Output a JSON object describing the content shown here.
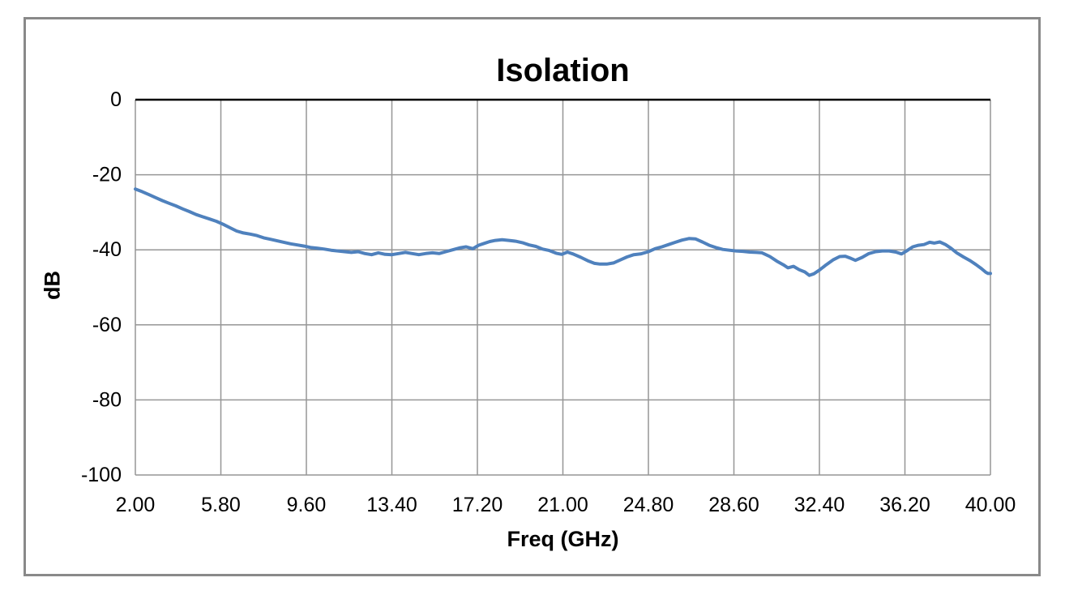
{
  "chart_data": {
    "type": "line",
    "title": "Isolation",
    "xlabel": "Freq (GHz)",
    "ylabel": "dB",
    "x_ticks": [
      "2.00",
      "5.80",
      "9.60",
      "13.40",
      "17.20",
      "21.00",
      "24.80",
      "28.60",
      "32.40",
      "36.20",
      "40.00"
    ],
    "x_tick_values": [
      2.0,
      5.8,
      9.6,
      13.4,
      17.2,
      21.0,
      24.8,
      28.6,
      32.4,
      36.2,
      40.0
    ],
    "y_ticks": [
      "0",
      "-20",
      "-40",
      "-60",
      "-80",
      "-100"
    ],
    "y_tick_values": [
      0,
      -20,
      -40,
      -60,
      -80,
      -100
    ],
    "xlim": [
      2.0,
      40.0
    ],
    "ylim": [
      -100,
      0
    ],
    "grid": true,
    "legend": "none",
    "colors": {
      "line": "#4F81BD",
      "grid": "#969696",
      "axis": "#000000",
      "border": "#898989"
    },
    "series": [
      {
        "name": "Isolation",
        "points": [
          [
            2.0,
            -23.8
          ],
          [
            2.3,
            -24.5
          ],
          [
            2.6,
            -25.3
          ],
          [
            2.9,
            -26.1
          ],
          [
            3.2,
            -26.9
          ],
          [
            3.5,
            -27.6
          ],
          [
            3.8,
            -28.3
          ],
          [
            4.1,
            -29.1
          ],
          [
            4.4,
            -29.8
          ],
          [
            4.7,
            -30.6
          ],
          [
            5.0,
            -31.2
          ],
          [
            5.3,
            -31.8
          ],
          [
            5.6,
            -32.4
          ],
          [
            5.9,
            -33.2
          ],
          [
            6.2,
            -34.1
          ],
          [
            6.5,
            -35.0
          ],
          [
            6.8,
            -35.5
          ],
          [
            7.1,
            -35.8
          ],
          [
            7.4,
            -36.2
          ],
          [
            7.7,
            -36.8
          ],
          [
            8.0,
            -37.2
          ],
          [
            8.3,
            -37.6
          ],
          [
            8.6,
            -38.0
          ],
          [
            8.9,
            -38.4
          ],
          [
            9.2,
            -38.7
          ],
          [
            9.5,
            -39.0
          ],
          [
            9.8,
            -39.4
          ],
          [
            10.1,
            -39.6
          ],
          [
            10.4,
            -39.8
          ],
          [
            10.7,
            -40.1
          ],
          [
            11.0,
            -40.3
          ],
          [
            11.3,
            -40.5
          ],
          [
            11.6,
            -40.7
          ],
          [
            11.9,
            -40.5
          ],
          [
            12.2,
            -41.0
          ],
          [
            12.5,
            -41.3
          ],
          [
            12.8,
            -40.8
          ],
          [
            13.1,
            -41.2
          ],
          [
            13.4,
            -41.3
          ],
          [
            13.7,
            -41.0
          ],
          [
            14.0,
            -40.7
          ],
          [
            14.3,
            -41.0
          ],
          [
            14.6,
            -41.3
          ],
          [
            14.9,
            -41.0
          ],
          [
            15.2,
            -40.8
          ],
          [
            15.5,
            -41.0
          ],
          [
            15.8,
            -40.5
          ],
          [
            16.1,
            -40.0
          ],
          [
            16.4,
            -39.5
          ],
          [
            16.7,
            -39.2
          ],
          [
            17.0,
            -39.7
          ],
          [
            17.25,
            -38.8
          ],
          [
            17.5,
            -38.3
          ],
          [
            17.75,
            -37.8
          ],
          [
            18.0,
            -37.5
          ],
          [
            18.3,
            -37.3
          ],
          [
            18.6,
            -37.5
          ],
          [
            18.9,
            -37.7
          ],
          [
            19.2,
            -38.1
          ],
          [
            19.5,
            -38.7
          ],
          [
            19.8,
            -39.1
          ],
          [
            20.1,
            -39.8
          ],
          [
            20.4,
            -40.2
          ],
          [
            20.7,
            -40.9
          ],
          [
            20.95,
            -41.2
          ],
          [
            21.2,
            -40.6
          ],
          [
            21.45,
            -41.1
          ],
          [
            21.8,
            -42.0
          ],
          [
            22.1,
            -42.9
          ],
          [
            22.4,
            -43.6
          ],
          [
            22.65,
            -43.8
          ],
          [
            22.95,
            -43.8
          ],
          [
            23.25,
            -43.5
          ],
          [
            23.55,
            -42.7
          ],
          [
            23.85,
            -41.9
          ],
          [
            24.15,
            -41.3
          ],
          [
            24.45,
            -41.1
          ],
          [
            24.8,
            -40.5
          ],
          [
            25.1,
            -39.7
          ],
          [
            25.4,
            -39.2
          ],
          [
            25.7,
            -38.6
          ],
          [
            26.0,
            -38.0
          ],
          [
            26.3,
            -37.4
          ],
          [
            26.6,
            -37.0
          ],
          [
            26.9,
            -37.1
          ],
          [
            27.2,
            -37.9
          ],
          [
            27.5,
            -38.8
          ],
          [
            27.8,
            -39.4
          ],
          [
            28.1,
            -39.9
          ],
          [
            28.4,
            -40.1
          ],
          [
            28.7,
            -40.3
          ],
          [
            29.0,
            -40.4
          ],
          [
            29.3,
            -40.6
          ],
          [
            29.6,
            -40.7
          ],
          [
            29.85,
            -40.8
          ],
          [
            30.2,
            -41.8
          ],
          [
            30.5,
            -43.0
          ],
          [
            30.8,
            -44.0
          ],
          [
            31.0,
            -44.8
          ],
          [
            31.25,
            -44.4
          ],
          [
            31.5,
            -45.3
          ],
          [
            31.75,
            -45.9
          ],
          [
            31.95,
            -46.8
          ],
          [
            32.15,
            -46.4
          ],
          [
            32.4,
            -45.4
          ],
          [
            32.7,
            -44.0
          ],
          [
            33.0,
            -42.7
          ],
          [
            33.3,
            -41.8
          ],
          [
            33.55,
            -41.7
          ],
          [
            33.8,
            -42.3
          ],
          [
            34.0,
            -42.8
          ],
          [
            34.3,
            -42.0
          ],
          [
            34.6,
            -41.0
          ],
          [
            34.9,
            -40.5
          ],
          [
            35.2,
            -40.3
          ],
          [
            35.5,
            -40.3
          ],
          [
            35.8,
            -40.6
          ],
          [
            36.05,
            -41.1
          ],
          [
            36.3,
            -40.2
          ],
          [
            36.55,
            -39.2
          ],
          [
            36.8,
            -38.8
          ],
          [
            37.05,
            -38.6
          ],
          [
            37.3,
            -38.0
          ],
          [
            37.5,
            -38.2
          ],
          [
            37.75,
            -37.9
          ],
          [
            38.0,
            -38.6
          ],
          [
            38.25,
            -39.6
          ],
          [
            38.5,
            -40.8
          ],
          [
            38.8,
            -41.9
          ],
          [
            39.1,
            -42.9
          ],
          [
            39.35,
            -43.9
          ],
          [
            39.6,
            -45.0
          ],
          [
            39.8,
            -46.0
          ],
          [
            39.9,
            -46.3
          ],
          [
            40.0,
            -46.3
          ]
        ]
      }
    ]
  }
}
